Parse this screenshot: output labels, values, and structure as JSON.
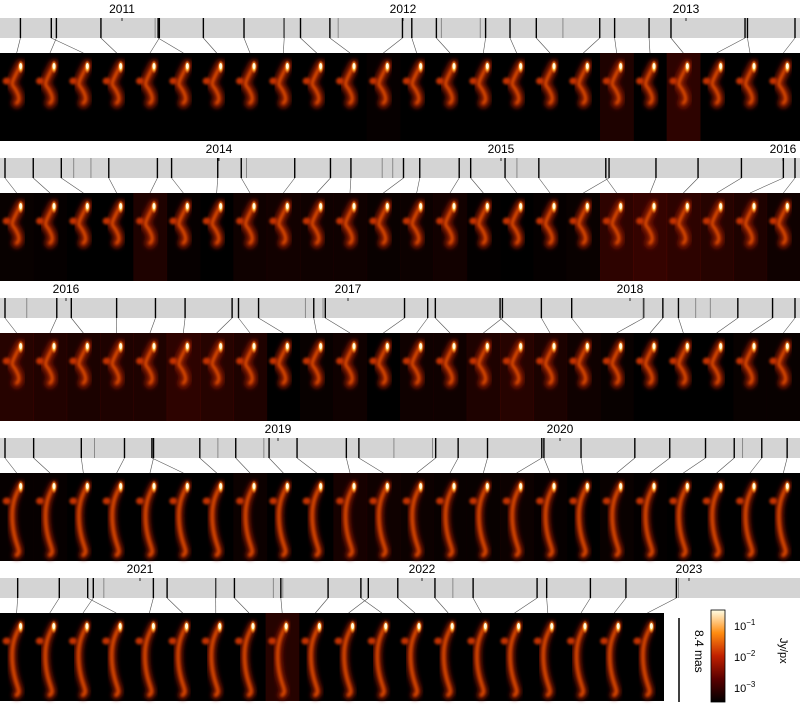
{
  "rows": [
    {
      "years": [
        "2011",
        "2012",
        "2013"
      ],
      "panels": 24,
      "tints": [
        0,
        0,
        0,
        0,
        0,
        0,
        0,
        0,
        0,
        0,
        0,
        0.04,
        0,
        0,
        0,
        0,
        0,
        0,
        0.2,
        0,
        0.3,
        0,
        0,
        0
      ]
    },
    {
      "years": [
        "2014",
        "2015",
        "2016"
      ],
      "panels": 24,
      "tints": [
        0.05,
        0.03,
        0,
        0,
        0.2,
        0.04,
        0,
        0.1,
        0.12,
        0.1,
        0.1,
        0.06,
        0.08,
        0.12,
        0.02,
        0,
        0.03,
        0.06,
        0.3,
        0.35,
        0.3,
        0.25,
        0.2,
        0.1
      ]
    },
    {
      "years": [
        "2016",
        "2017",
        "2018"
      ],
      "panels": 24,
      "tints": [
        0.25,
        0.22,
        0.18,
        0.2,
        0.2,
        0.3,
        0.25,
        0.2,
        0,
        0.05,
        0.1,
        0,
        0.1,
        0.1,
        0.2,
        0.25,
        0.18,
        0.1,
        0.05,
        0,
        0,
        0,
        0.05,
        0.05
      ]
    },
    {
      "years": [
        "2019",
        "2020"
      ],
      "panels": 24,
      "tints": [
        0.04,
        0.04,
        0,
        0,
        0,
        0,
        0,
        0.08,
        0,
        0,
        0.15,
        0.1,
        0.08,
        0.05,
        0.05,
        0.08,
        0.04,
        0,
        0.06,
        0.02,
        0,
        0,
        0,
        0
      ]
    },
    {
      "years": [
        "2021",
        "2022",
        "2023"
      ],
      "panels": 20,
      "tints": [
        0,
        0,
        0,
        0,
        0,
        0,
        0,
        0,
        0.25,
        0,
        0,
        0,
        0,
        0,
        0,
        0,
        0,
        0,
        0,
        0
      ]
    }
  ],
  "scale_bar": {
    "label": "8.4 mas"
  },
  "colorbar": {
    "unit": "Jy/px",
    "ticks": [
      {
        "base": "10",
        "exp": "−1"
      },
      {
        "base": "10",
        "exp": "−2"
      },
      {
        "base": "10",
        "exp": "−3"
      }
    ]
  }
}
